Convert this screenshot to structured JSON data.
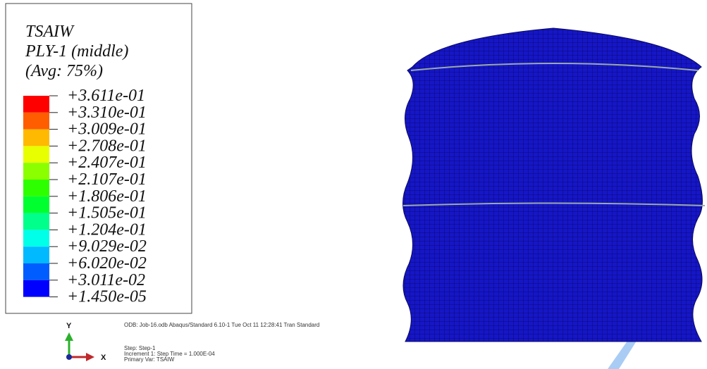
{
  "legend": {
    "title_lines": [
      "TSAIW",
      "PLY-1 (middle)",
      "(Avg: 75%)"
    ],
    "labels": [
      "+3.611e-01",
      "+3.310e-01",
      "+3.009e-01",
      "+2.708e-01",
      "+2.407e-01",
      "+2.107e-01",
      "+1.806e-01",
      "+1.505e-01",
      "+1.204e-01",
      "+9.029e-02",
      "+6.020e-02",
      "+3.011e-02",
      "+1.450e-05"
    ],
    "colors": [
      "#ff0000",
      "#ff5d00",
      "#ffb900",
      "#e8ff00",
      "#8bff00",
      "#2eff00",
      "#00ff2e",
      "#00ff8b",
      "#00ffe8",
      "#00b9ff",
      "#005dff",
      "#0000ff"
    ]
  },
  "info": {
    "line1": "ODB: Job-16.odb    Abaqus/Standard 6.10-1    Tue Oct 11 12:28:41 Tran Standard",
    "step": "Step: Step-1",
    "increment": "Increment    1: Step Time =   1.000E-04",
    "primary_var": "Primary Var: TSAIW"
  },
  "triad": {
    "y": "Y",
    "x": "X"
  }
}
